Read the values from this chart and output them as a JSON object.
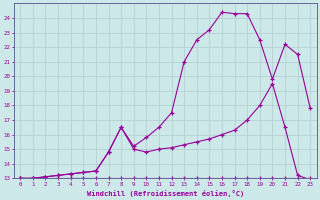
{
  "title": "",
  "xlabel": "Windchill (Refroidissement éolien,°C)",
  "background_color": "#cce8e8",
  "grid_color": "#b0cccc",
  "line_color": "#990099",
  "spine_color": "#666699",
  "xlim": [
    -0.5,
    23.5
  ],
  "ylim": [
    13,
    25
  ],
  "xticks": [
    0,
    1,
    2,
    3,
    4,
    5,
    6,
    7,
    8,
    9,
    10,
    11,
    12,
    13,
    14,
    15,
    16,
    17,
    18,
    19,
    20,
    21,
    22,
    23
  ],
  "yticks": [
    13,
    14,
    15,
    16,
    17,
    18,
    19,
    20,
    21,
    22,
    23,
    24
  ],
  "line1_x": [
    0,
    1,
    2,
    3,
    4,
    5,
    6,
    7,
    8,
    9,
    10,
    11,
    12,
    13,
    14,
    15,
    16,
    17,
    18,
    19,
    20,
    21,
    22,
    23
  ],
  "line1_y": [
    13,
    13,
    13,
    13,
    13,
    13,
    13,
    13,
    13,
    13,
    13,
    13,
    13,
    13,
    13,
    13,
    13,
    13,
    13,
    13,
    13,
    13,
    13,
    13
  ],
  "line2_x": [
    0,
    1,
    2,
    3,
    4,
    5,
    6,
    7,
    8,
    9,
    10,
    11,
    12,
    13,
    14,
    15,
    16,
    17,
    18,
    19,
    20,
    21,
    22,
    23
  ],
  "line2_y": [
    13,
    13,
    13.1,
    13.2,
    13.3,
    13.4,
    13.5,
    14.8,
    16.5,
    15.0,
    14.8,
    15.0,
    15.1,
    15.3,
    15.5,
    15.7,
    16.0,
    16.3,
    17.0,
    18.0,
    19.5,
    16.5,
    13.2,
    12.9
  ],
  "line3_x": [
    0,
    1,
    2,
    3,
    4,
    5,
    6,
    7,
    8,
    9,
    10,
    11,
    12,
    13,
    14,
    15,
    16,
    17,
    18,
    19,
    20,
    21,
    22,
    23
  ],
  "line3_y": [
    13,
    13,
    13.1,
    13.2,
    13.3,
    13.4,
    13.5,
    14.8,
    16.5,
    15.2,
    15.8,
    16.5,
    17.5,
    21.0,
    22.5,
    23.2,
    24.4,
    24.3,
    24.3,
    22.5,
    19.8,
    22.2,
    21.5,
    17.8
  ]
}
